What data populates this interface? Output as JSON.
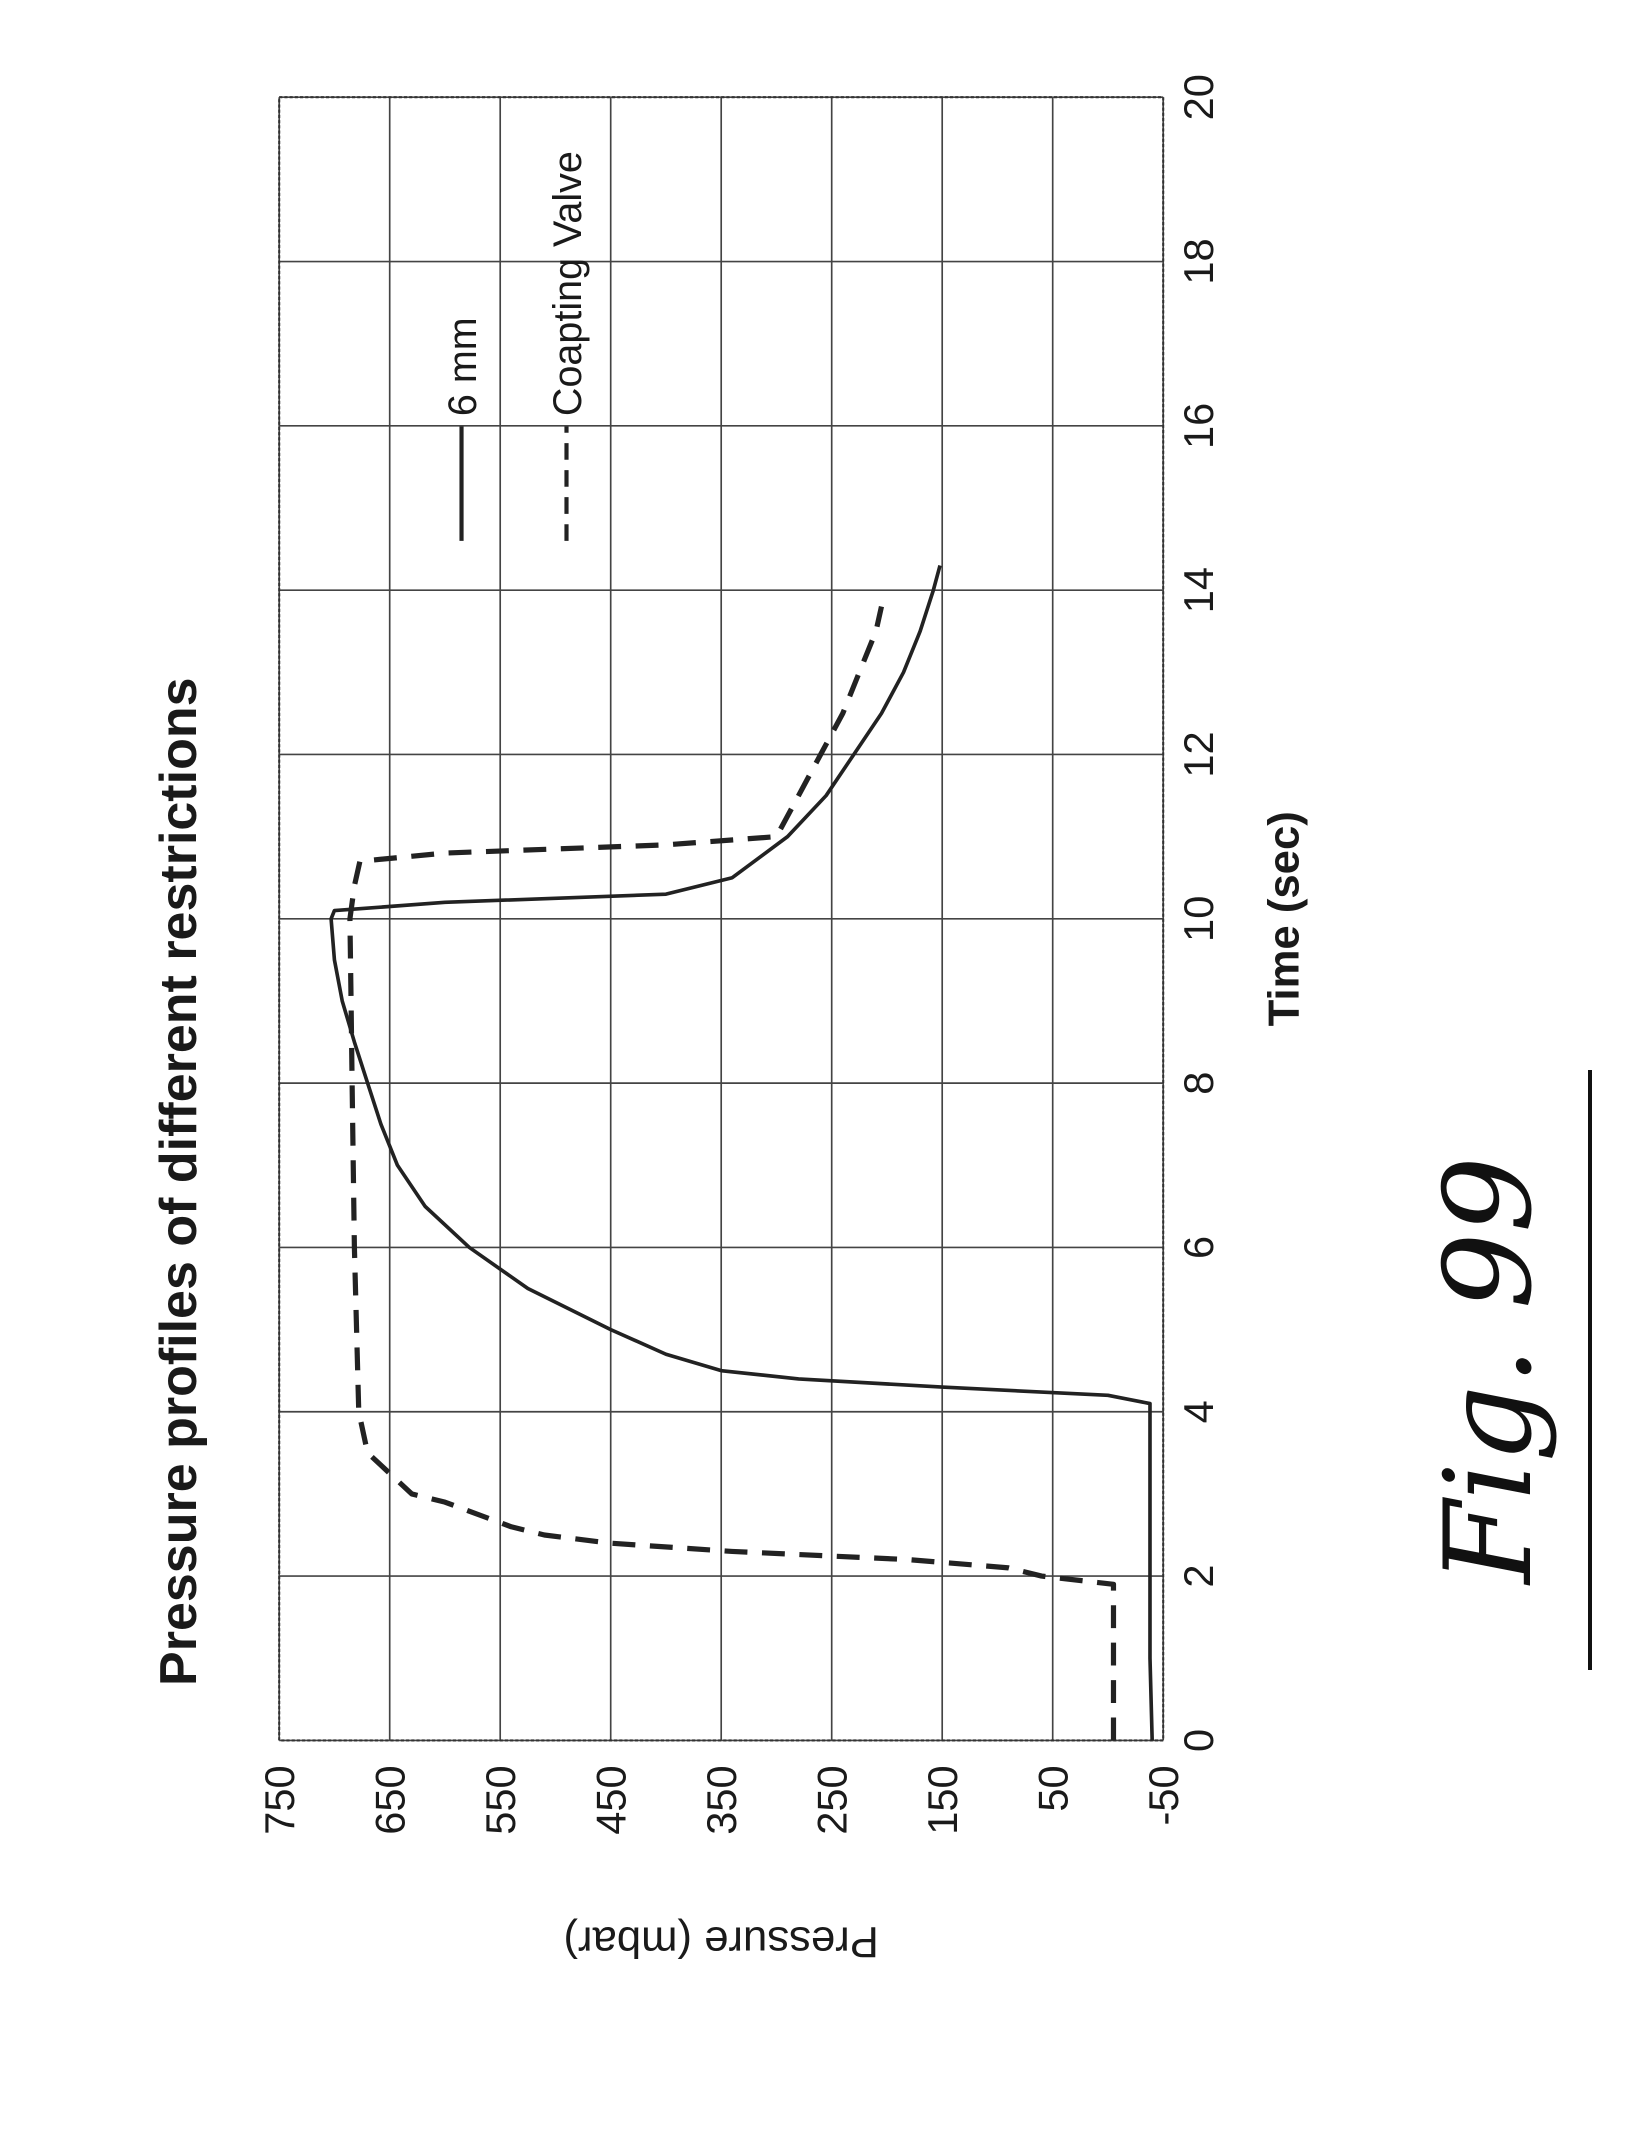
{
  "chart_data": {
    "type": "line",
    "title": "Pressure profiles of different restrictions",
    "xlabel": "Time (sec)",
    "ylabel": "Pressure (mbar)",
    "xlim": [
      0,
      20
    ],
    "ylim": [
      -50,
      750
    ],
    "x_ticks": [
      "0",
      "2",
      "4",
      "6",
      "8",
      "10",
      "12",
      "14",
      "16",
      "18",
      "20"
    ],
    "y_ticks": [
      "-50",
      "50",
      "150",
      "250",
      "350",
      "450",
      "550",
      "650",
      "750"
    ],
    "grid": true,
    "legend_position": "top-right",
    "figure_label": "Fig. 99",
    "series": [
      {
        "name": "6 mm",
        "style": "solid",
        "color": "#222222",
        "x": [
          0,
          1,
          2,
          3,
          4.1,
          4.2,
          4.3,
          4.4,
          4.5,
          4.7,
          5.0,
          5.5,
          6.0,
          6.5,
          7.0,
          7.5,
          8.0,
          8.5,
          9.0,
          9.5,
          10.0,
          10.1,
          10.2,
          10.3,
          10.5,
          11.0,
          11.5,
          12.0,
          12.5,
          13.0,
          13.5,
          14.0,
          14.3
        ],
        "y": [
          -40,
          -38,
          -38,
          -38,
          -38,
          0,
          150,
          280,
          350,
          400,
          450,
          525,
          578,
          618,
          643,
          658,
          670,
          682,
          693,
          700,
          703,
          700,
          600,
          400,
          340,
          290,
          255,
          230,
          205,
          185,
          170,
          158,
          152
        ]
      },
      {
        "name": "Coapting Valve",
        "style": "dashed",
        "color": "#222222",
        "x": [
          0,
          1,
          1.9,
          2.0,
          2.1,
          2.2,
          2.3,
          2.4,
          2.5,
          2.6,
          2.7,
          2.9,
          3.0,
          3.5,
          4.0,
          5.0,
          6.0,
          7.0,
          8.0,
          9.0,
          10.0,
          10.4,
          10.7,
          10.8,
          10.9,
          11.0,
          11.5,
          12.0,
          12.5,
          13.0,
          13.5,
          13.8
        ],
        "y": [
          -5,
          -5,
          -5,
          60,
          90,
          180,
          340,
          450,
          510,
          540,
          560,
          600,
          630,
          670,
          678,
          680,
          682,
          683,
          684,
          685,
          686,
          682,
          677,
          600,
          400,
          300,
          280,
          260,
          240,
          225,
          210,
          205
        ]
      }
    ]
  }
}
